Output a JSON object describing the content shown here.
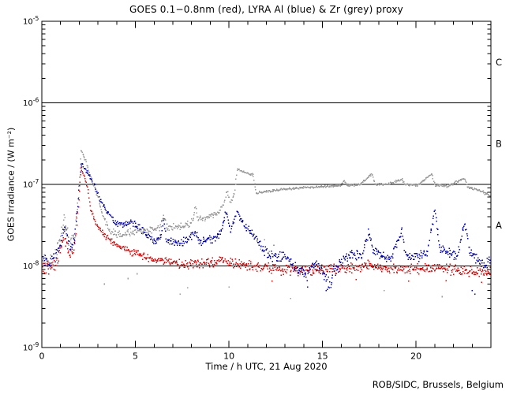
{
  "title": "GOES 0.1−0.8nm (red), LYRA Al (blue) & Zr (grey) proxy",
  "credit": "ROB/SIDC, Brussels, Belgium",
  "chart_data": {
    "type": "scatter",
    "title": "GOES 0.1−0.8nm (red), LYRA Al (blue) & Zr (grey) proxy",
    "xlabel": "Time / h UTC, 21 Aug 2020",
    "ylabel": "GOES Irradiance / (W m⁻²)",
    "x_range_h": [
      0,
      24
    ],
    "x_major_ticks": [
      0,
      5,
      10,
      15,
      20
    ],
    "x_minor_step_h": 1,
    "y_scale": "log",
    "y_range_wm2": [
      1e-09,
      1e-05
    ],
    "y_tick_exponents": [
      -5,
      -6,
      -7,
      -8,
      -9
    ],
    "reference_lines_wm2": [
      1e-06,
      1e-07,
      1e-08
    ],
    "flare_class_labels": [
      {
        "label": "C",
        "log_center": -5.5
      },
      {
        "label": "B",
        "log_center": -6.5
      },
      {
        "label": "A",
        "log_center": -7.5
      }
    ],
    "grid": "off",
    "legend": "in-title",
    "colors": {
      "red": "#ee0000",
      "blue": "#0000cc",
      "grey": "#9a9a9a",
      "axis": "#000000"
    },
    "series": [
      {
        "name": "GOES 0.1-0.8nm",
        "color_key": "red",
        "points_x_value_scatterdex": [
          [
            0.0,
            1e-08,
            0.08
          ],
          [
            0.4,
            9.5e-09,
            0.08
          ],
          [
            0.8,
            1.1e-08,
            0.07
          ],
          [
            1.05,
            1.8e-08,
            0.05
          ],
          [
            1.2,
            2.3e-08,
            0.05
          ],
          [
            1.5,
            1.3e-08,
            0.05
          ],
          [
            1.75,
            1.7e-08,
            0.05
          ],
          [
            1.95,
            5.5e-08,
            0.025
          ],
          [
            2.1,
            1.6e-07,
            0.015
          ],
          [
            2.25,
            1.3e-07,
            0.015
          ],
          [
            2.45,
            9e-08,
            0.015
          ],
          [
            2.6,
            5e-08,
            0.02
          ],
          [
            2.9,
            3.3e-08,
            0.025
          ],
          [
            3.2,
            2.6e-08,
            0.03
          ],
          [
            3.6,
            2.1e-08,
            0.035
          ],
          [
            4.0,
            1.8e-08,
            0.04
          ],
          [
            4.6,
            1.55e-08,
            0.04
          ],
          [
            5.2,
            1.35e-08,
            0.045
          ],
          [
            5.8,
            1.2e-08,
            0.045
          ],
          [
            6.4,
            1.15e-08,
            0.05
          ],
          [
            7.0,
            1.1e-08,
            0.05
          ],
          [
            7.6,
            1.05e-08,
            0.055
          ],
          [
            8.4,
            1.05e-08,
            0.055
          ],
          [
            9.2,
            1.1e-08,
            0.055
          ],
          [
            9.9,
            1.15e-08,
            0.05
          ],
          [
            10.5,
            1.05e-08,
            0.055
          ],
          [
            11.2,
            1e-08,
            0.055
          ],
          [
            12.0,
            9.5e-09,
            0.06
          ],
          [
            13.0,
            9e-09,
            0.06
          ],
          [
            14.0,
            9e-09,
            0.06
          ],
          [
            15.0,
            9e-09,
            0.06
          ],
          [
            16.0,
            9.5e-09,
            0.055
          ],
          [
            17.0,
            9.5e-09,
            0.055
          ],
          [
            17.5,
            1.05e-08,
            0.05
          ],
          [
            18.2,
            9.5e-09,
            0.055
          ],
          [
            19.0,
            9e-09,
            0.06
          ],
          [
            20.0,
            9e-09,
            0.06
          ],
          [
            21.0,
            9.5e-09,
            0.055
          ],
          [
            22.0,
            9e-09,
            0.06
          ],
          [
            23.0,
            8.5e-09,
            0.06
          ],
          [
            24.0,
            8.5e-09,
            0.06
          ]
        ],
        "outliers": [
          [
            12.3,
            6.5e-09
          ],
          [
            16.8,
            6.8e-09
          ],
          [
            19.6,
            6.5e-09
          ],
          [
            21.6,
            6.6e-09
          ],
          [
            23.5,
            6.3e-09
          ]
        ]
      },
      {
        "name": "LYRA Al proxy",
        "color_key": "blue",
        "points_x_value_scatterdex": [
          [
            0.0,
            1.25e-08,
            0.08
          ],
          [
            0.35,
            1.15e-08,
            0.08
          ],
          [
            0.7,
            1.3e-08,
            0.07
          ],
          [
            1.0,
            2e-08,
            0.06
          ],
          [
            1.2,
            3e-08,
            0.05
          ],
          [
            1.5,
            1.7e-08,
            0.05
          ],
          [
            1.75,
            2.1e-08,
            0.05
          ],
          [
            1.95,
            6.5e-08,
            0.03
          ],
          [
            2.1,
            1.8e-07,
            0.02
          ],
          [
            2.35,
            1.5e-07,
            0.02
          ],
          [
            2.6,
            1.2e-07,
            0.02
          ],
          [
            2.85,
            9.5e-08,
            0.02
          ],
          [
            3.1,
            6.5e-08,
            0.025
          ],
          [
            3.5,
            4.5e-08,
            0.03
          ],
          [
            3.9,
            3.4e-08,
            0.035
          ],
          [
            4.2,
            3.2e-08,
            0.035
          ],
          [
            4.7,
            3.5e-08,
            0.035
          ],
          [
            5.2,
            3e-08,
            0.04
          ],
          [
            5.6,
            2.4e-08,
            0.04
          ],
          [
            6.1,
            2e-08,
            0.045
          ],
          [
            6.4,
            2.4e-08,
            0.04
          ],
          [
            6.5,
            3.9e-08,
            0.03
          ],
          [
            6.65,
            2.1e-08,
            0.045
          ],
          [
            7.2,
            1.9e-08,
            0.05
          ],
          [
            7.8,
            2.1e-08,
            0.05
          ],
          [
            8.2,
            2.6e-08,
            0.04
          ],
          [
            8.45,
            2e-08,
            0.05
          ],
          [
            9.0,
            2.1e-08,
            0.05
          ],
          [
            9.5,
            2.4e-08,
            0.045
          ],
          [
            9.85,
            4.5e-08,
            0.03
          ],
          [
            10.1,
            2.7e-08,
            0.04
          ],
          [
            10.45,
            4.8e-08,
            0.03
          ],
          [
            10.7,
            3.4e-08,
            0.035
          ],
          [
            11.0,
            2.9e-08,
            0.04
          ],
          [
            11.4,
            2.2e-08,
            0.045
          ],
          [
            11.8,
            1.6e-08,
            0.05
          ],
          [
            12.3,
            1.3e-08,
            0.06
          ],
          [
            13.0,
            1.25e-08,
            0.06
          ],
          [
            13.6,
            9.5e-09,
            0.07
          ],
          [
            14.1,
            8e-09,
            0.08
          ],
          [
            14.6,
            1.1e-08,
            0.06
          ],
          [
            15.0,
            8.5e-09,
            0.09
          ],
          [
            15.35,
            6e-09,
            0.09
          ],
          [
            15.7,
            9e-09,
            0.08
          ],
          [
            16.1,
            1.25e-08,
            0.06
          ],
          [
            16.6,
            1.35e-08,
            0.055
          ],
          [
            17.1,
            1.3e-08,
            0.06
          ],
          [
            17.45,
            2.6e-08,
            0.05
          ],
          [
            17.7,
            1.6e-08,
            0.055
          ],
          [
            18.1,
            1.3e-08,
            0.055
          ],
          [
            18.7,
            1.25e-08,
            0.055
          ],
          [
            19.25,
            2.7e-08,
            0.04
          ],
          [
            19.45,
            1.4e-08,
            0.05
          ],
          [
            20.0,
            1.25e-08,
            0.055
          ],
          [
            20.6,
            1.5e-08,
            0.05
          ],
          [
            21.0,
            4.8e-08,
            0.03
          ],
          [
            21.25,
            1.7e-08,
            0.05
          ],
          [
            21.7,
            1.5e-08,
            0.05
          ],
          [
            22.2,
            1.3e-08,
            0.055
          ],
          [
            22.6,
            3.6e-08,
            0.035
          ],
          [
            22.85,
            1.5e-08,
            0.05
          ],
          [
            23.3,
            1.2e-08,
            0.06
          ],
          [
            23.7,
            1e-08,
            0.06
          ],
          [
            24.0,
            1.15e-08,
            0.06
          ]
        ],
        "outliers": [
          [
            14.2,
            5.5e-09
          ],
          [
            15.2,
            5e-09
          ],
          [
            23.0,
            5e-09
          ],
          [
            23.15,
            4.5e-09
          ]
        ]
      },
      {
        "name": "LYRA Zr proxy",
        "color_key": "grey",
        "points_x_value_scatterdex": [
          [
            0.0,
            1.15e-08,
            0.1
          ],
          [
            0.35,
            1.05e-08,
            0.1
          ],
          [
            0.7,
            1.2e-08,
            0.09
          ],
          [
            1.0,
            2.2e-08,
            0.06
          ],
          [
            1.2,
            3.8e-08,
            0.05
          ],
          [
            1.5,
            1.9e-08,
            0.06
          ],
          [
            1.75,
            2.4e-08,
            0.05
          ],
          [
            1.95,
            7e-08,
            0.03
          ],
          [
            2.1,
            2.65e-07,
            0.02
          ],
          [
            2.35,
            1.9e-07,
            0.02
          ],
          [
            2.6,
            1.3e-07,
            0.02
          ],
          [
            2.8,
            9.5e-08,
            0.02
          ],
          [
            3.0,
            7e-08,
            0.025
          ],
          [
            3.3,
            4e-08,
            0.03
          ],
          [
            3.6,
            2.8e-08,
            0.035
          ],
          [
            4.0,
            2.4e-08,
            0.04
          ],
          [
            4.6,
            2.5e-08,
            0.04
          ],
          [
            5.2,
            2.7e-08,
            0.04
          ],
          [
            5.8,
            2.8e-08,
            0.04
          ],
          [
            6.3,
            3e-08,
            0.04
          ],
          [
            6.5,
            4.2e-08,
            0.03
          ],
          [
            6.65,
            3e-08,
            0.04
          ],
          [
            7.2,
            3e-08,
            0.04
          ],
          [
            7.8,
            3.2e-08,
            0.04
          ],
          [
            8.1,
            3.7e-08,
            0.03
          ],
          [
            8.2,
            5.5e-08,
            0.02
          ],
          [
            8.35,
            3.8e-08,
            0.03
          ],
          [
            8.9,
            3.9e-08,
            0.03
          ],
          [
            9.4,
            4.4e-08,
            0.03
          ],
          [
            9.7,
            5.5e-08,
            0.025
          ],
          [
            9.9,
            8.3e-08,
            0.02
          ],
          [
            10.1,
            6e-08,
            0.025
          ],
          [
            10.3,
            8e-08,
            0.02
          ],
          [
            10.45,
            1.55e-07,
            0.012
          ],
          [
            10.7,
            1.45e-07,
            0.012
          ],
          [
            11.0,
            1.38e-07,
            0.012
          ],
          [
            11.3,
            1.3e-07,
            0.012
          ],
          [
            11.45,
            7.8e-08,
            0.012
          ],
          [
            12.0,
            8.2e-08,
            0.012
          ],
          [
            12.8,
            8.6e-08,
            0.012
          ],
          [
            13.6,
            9e-08,
            0.012
          ],
          [
            14.5,
            9.3e-08,
            0.012
          ],
          [
            15.4,
            9.5e-08,
            0.012
          ],
          [
            16.0,
            9.7e-08,
            0.012
          ],
          [
            16.15,
            1.12e-07,
            0.012
          ],
          [
            16.3,
            9.7e-08,
            0.012
          ],
          [
            17.0,
            1e-07,
            0.012
          ],
          [
            17.65,
            1.35e-07,
            0.012
          ],
          [
            17.8,
            1e-07,
            0.012
          ],
          [
            18.4,
            1e-07,
            0.012
          ],
          [
            19.25,
            1.15e-07,
            0.012
          ],
          [
            19.4,
            1e-07,
            0.012
          ],
          [
            20.1,
            9.8e-08,
            0.012
          ],
          [
            20.85,
            1.35e-07,
            0.012
          ],
          [
            21.0,
            9.8e-08,
            0.012
          ],
          [
            21.7,
            9.5e-08,
            0.012
          ],
          [
            22.6,
            1.2e-07,
            0.012
          ],
          [
            22.75,
            9.3e-08,
            0.012
          ],
          [
            23.4,
            8.4e-08,
            0.015
          ],
          [
            24.0,
            7.3e-08,
            0.02
          ]
        ],
        "outliers": [
          [
            3.35,
            6e-09
          ],
          [
            4.6,
            7e-09
          ],
          [
            5.1,
            8e-09
          ],
          [
            7.4,
            4.5e-09
          ],
          [
            7.8,
            5.4e-09
          ],
          [
            10.0,
            5.5e-09
          ],
          [
            11.5,
            2e-08
          ],
          [
            11.7,
            1.6e-08
          ],
          [
            11.9,
            2.1e-08
          ],
          [
            12.15,
            1.5e-08
          ],
          [
            12.4,
            1.8e-08
          ],
          [
            13.3,
            4e-09
          ],
          [
            18.3,
            5e-09
          ],
          [
            21.4,
            4.2e-09
          ]
        ]
      }
    ]
  }
}
